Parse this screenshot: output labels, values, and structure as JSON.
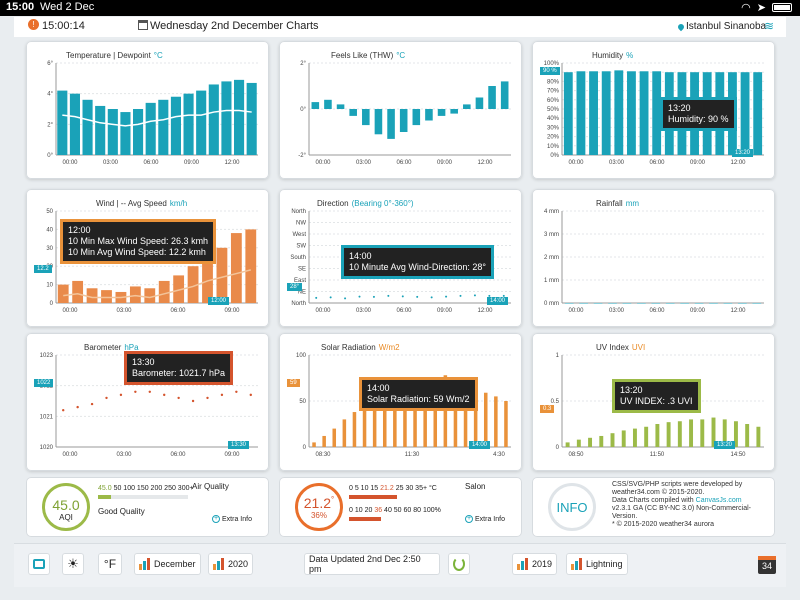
{
  "statusbar": {
    "time": "15:00",
    "date": "Wed 2 Dec"
  },
  "topbar": {
    "clock": "15:00:14",
    "title": "Wednesday 2nd December Charts",
    "location": "Istanbul Sinanoba"
  },
  "colors": {
    "teal": "#1aa2b8",
    "orange": "#e9923a",
    "green": "#9cba48",
    "red": "#d4542d"
  },
  "panels": {
    "temperature": {
      "title": "Temperature | Dewpoint",
      "unit": "°C",
      "yticks": [
        "6°",
        "4°",
        "2°",
        "0°"
      ],
      "xticks": [
        "00:00",
        "03:00",
        "06:00",
        "09:00",
        "12:00"
      ]
    },
    "feels": {
      "title": "Feels Like (THW)",
      "unit": "°C",
      "yticks": [
        "2°",
        "0°",
        "-2°"
      ],
      "xticks": [
        "00:00",
        "03:00",
        "06:00",
        "09:00",
        "12:00"
      ]
    },
    "humidity": {
      "title": "Humidity",
      "unit": "%",
      "yticks": [
        "100%",
        "90%",
        "80%",
        "70%",
        "60%",
        "50%",
        "40%",
        "30%",
        "20%",
        "10%",
        "0%"
      ],
      "xticks": [
        "00:00",
        "03:00",
        "06:00",
        "09:00",
        "12:00"
      ],
      "tag": "90 %",
      "xtag": "13:20",
      "tooltip": {
        "time": "13:20",
        "text": "Humidity:  90 %"
      }
    },
    "wind": {
      "title": "Wind | -- Avg Speed",
      "unit": "km/h",
      "yticks": [
        "50",
        "40",
        "30",
        "20",
        "10",
        "0"
      ],
      "xticks": [
        "00:00",
        "03:00",
        "06:00",
        "09:00"
      ],
      "tag": "12.2",
      "xtag": "12:00",
      "tooltip": {
        "time": "12:00",
        "line1": "10 Min Max Wind Speed:  26.3 kmh",
        "line2": "10 Min Avg Wind Speed:  12.2 kmh"
      }
    },
    "direction": {
      "title": "Direction",
      "unit": "(Bearing 0°-360°)",
      "yticks": [
        "North",
        "NW",
        "West",
        "SW",
        "South",
        "SE",
        "East",
        "NE",
        "North"
      ],
      "xticks": [
        "00:00",
        "03:00",
        "06:00",
        "09:00",
        "12:00"
      ],
      "tag": "28°",
      "xtag": "14:00",
      "tooltip": {
        "time": "14:00",
        "text": "10 Minute Avg Wind-Direction:  28°"
      }
    },
    "rainfall": {
      "title": "Rainfall",
      "unit": "mm",
      "yticks": [
        "4 mm",
        "3 mm",
        "2 mm",
        "1 mm",
        "0 mm"
      ],
      "xticks": [
        "00:00",
        "03:00",
        "06:00",
        "09:00",
        "12:00"
      ]
    },
    "barometer": {
      "title": "Barometer",
      "unit": "hPa",
      "yticks": [
        "1023",
        "1022",
        "1021",
        "1020"
      ],
      "xticks": [
        "00:00",
        "03:00",
        "06:00",
        "09:00"
      ],
      "tag": "1022",
      "xtag": "13:30",
      "tooltip": {
        "time": "13:30",
        "text": "Barometer:  1021.7 hPa"
      }
    },
    "solar": {
      "title": "Solar Radiation",
      "unit": "W/m2",
      "yticks": [
        "100",
        "50",
        "0"
      ],
      "xticks": [
        "08:30",
        "11:30"
      ],
      "xticks_right": [
        "4:30"
      ],
      "tag": "59",
      "xtag": "14:00",
      "tooltip": {
        "time": "14:00",
        "text": "Solar Radiation:  59 Wm/2"
      }
    },
    "uv": {
      "title": "UV Index",
      "unit": "UVI",
      "yticks": [
        "1",
        "0.5",
        "0"
      ],
      "xticks": [
        "08:50",
        "11:50",
        "14:50"
      ],
      "tag": "0.3",
      "xtag": "13:20",
      "tooltip": {
        "time": "13:20",
        "text": "UV INDEX:  .3 UVI"
      }
    }
  },
  "chart_data": [
    {
      "type": "bar",
      "title": "Temperature | Dewpoint",
      "ylim": [
        0,
        6
      ],
      "series": [
        {
          "name": "Temperature",
          "values": [
            4.2,
            4.0,
            3.6,
            3.2,
            3.0,
            2.8,
            3.0,
            3.4,
            3.6,
            3.8,
            4.0,
            4.2,
            4.6,
            4.8,
            4.9,
            4.7
          ]
        },
        {
          "name": "Dewpoint",
          "values": [
            2.6,
            2.5,
            2.3,
            2.1,
            2.0,
            1.9,
            2.0,
            2.2,
            2.3,
            2.5,
            2.6,
            2.6,
            2.8,
            2.9,
            2.9,
            2.8
          ]
        }
      ]
    },
    {
      "type": "bar",
      "title": "Feels Like (THW)",
      "ylim": [
        -2,
        2
      ],
      "values": [
        0.3,
        0.4,
        0.2,
        -0.3,
        -0.7,
        -1.1,
        -1.3,
        -1.0,
        -0.7,
        -0.5,
        -0.3,
        -0.2,
        0.2,
        0.5,
        1.0,
        1.2
      ]
    },
    {
      "type": "bar",
      "title": "Humidity",
      "ylim": [
        0,
        100
      ],
      "values": [
        90,
        91,
        91,
        91,
        92,
        91,
        91,
        91,
        90,
        90,
        90,
        90,
        90,
        90,
        90,
        90
      ]
    },
    {
      "type": "bar",
      "title": "Wind | -- Avg Speed",
      "ylim": [
        0,
        50
      ],
      "series": [
        {
          "name": "10 Min Max Wind Speed",
          "values": [
            10,
            12,
            8,
            7,
            6,
            9,
            8,
            12,
            15,
            20,
            26,
            30,
            38,
            40
          ]
        },
        {
          "name": "10 Min Avg Wind Speed",
          "values": [
            4,
            5,
            3,
            3,
            3,
            4,
            3,
            5,
            7,
            9,
            12,
            14,
            16,
            18
          ]
        }
      ]
    },
    {
      "type": "scatter",
      "title": "Direction",
      "values": [
        20,
        22,
        18,
        25,
        24,
        28,
        26,
        24,
        22,
        25,
        28,
        30,
        28,
        28
      ]
    },
    {
      "type": "bar",
      "title": "Rainfall",
      "ylim": [
        0,
        4
      ],
      "values": [
        0,
        0,
        0,
        0,
        0,
        0,
        0,
        0,
        0,
        0,
        0,
        0,
        0,
        0
      ]
    },
    {
      "type": "scatter",
      "title": "Barometer",
      "ylim": [
        1020,
        1023
      ],
      "values": [
        1021.2,
        1021.3,
        1021.4,
        1021.6,
        1021.7,
        1021.8,
        1021.8,
        1021.7,
        1021.6,
        1021.5,
        1021.6,
        1021.7,
        1021.8,
        1021.7
      ]
    },
    {
      "type": "bar",
      "title": "Solar Radiation",
      "ylim": [
        0,
        100
      ],
      "values": [
        5,
        12,
        20,
        30,
        38,
        46,
        52,
        55,
        60,
        64,
        66,
        70,
        73,
        78,
        72,
        68,
        64,
        59,
        55,
        50
      ]
    },
    {
      "type": "bar",
      "title": "UV Index",
      "ylim": [
        0,
        1
      ],
      "values": [
        0.05,
        0.08,
        0.1,
        0.12,
        0.15,
        0.18,
        0.2,
        0.22,
        0.25,
        0.27,
        0.28,
        0.3,
        0.3,
        0.32,
        0.3,
        0.28,
        0.25,
        0.22
      ]
    }
  ],
  "air": {
    "value": "45.0",
    "aqi": "AQI",
    "scale_first": "45.0",
    "scale": "50 100 150 200 250 300+",
    "quality": "Good Quality",
    "title": "Air Quality",
    "extra": "Extra Info"
  },
  "salon": {
    "temp": "21.2",
    "deg": "°",
    "humidity": "36%",
    "title": "Salon",
    "scale1_pre": "0 5 10 15 ",
    "scale1_hl": "21.2",
    "scale1_post": " 25 30 35+ °C",
    "scale2_pre": "0 10 20 ",
    "scale2_hl": "36",
    "scale2_post": " 40 50 60 80 100%",
    "extra": "Extra Info"
  },
  "info": {
    "label": "INFO",
    "line1": "CSS/SVG/PHP scripts were developed by",
    "line2": "weather34.com © 2015-2020.",
    "line3": "Data Charts compiled with",
    "link": "CanvasJs.com",
    "line4": "v2.3.1 GA (CC BY-NC 3.0) Non-Commercial-",
    "line5": "Version.",
    "line6": "* © 2015-2020 weather34 aurora"
  },
  "toolbar": {
    "unit": "°F",
    "month": "December",
    "year": "2020",
    "updated": "Data Updated 2nd Dec 2:50 pm",
    "year2": "2019",
    "lightning": "Lightning",
    "brand": "34"
  }
}
